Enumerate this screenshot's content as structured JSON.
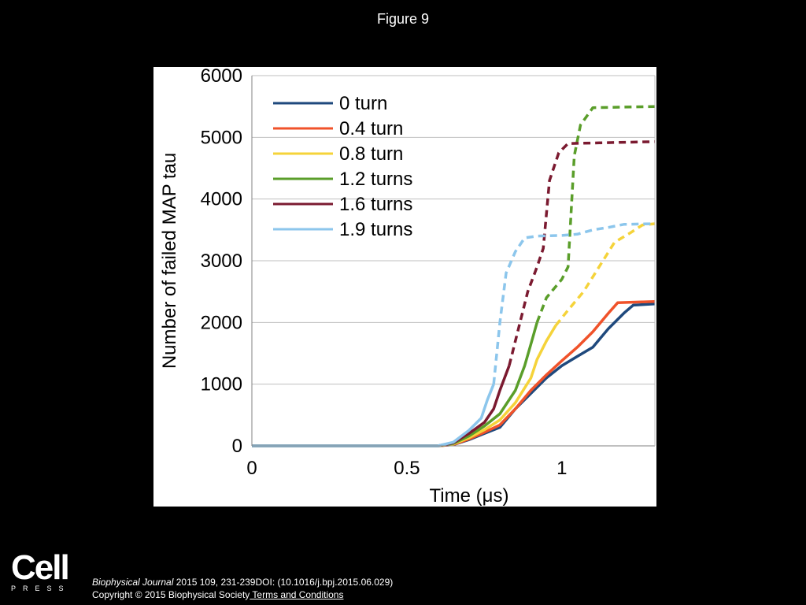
{
  "figure_title": "Figure 9",
  "footer": {
    "journal": "Biophysical Journal",
    "citation": " 2015 109, 231-239DOI: (10.1016/j.bpj.2015.06.029)",
    "copyright": "Copyright © 2015 Biophysical Society",
    "terms_link": " Terms and Conditions",
    "logo_word": "Cell",
    "logo_sub": "PRESS"
  },
  "chart_data": {
    "type": "line",
    "title": "",
    "xlabel": "Time (μs)",
    "ylabel": "Number of failed MAP tau",
    "xlim": [
      0,
      1.3
    ],
    "ylim": [
      0,
      6000
    ],
    "x_ticks": [
      0,
      0.5,
      1
    ],
    "x_tick_labels": [
      "0",
      "0.5",
      "1"
    ],
    "y_ticks": [
      0,
      1000,
      2000,
      3000,
      4000,
      5000,
      6000
    ],
    "y_tick_labels": [
      "0",
      "1000",
      "2000",
      "3000",
      "4000",
      "5000",
      "6000"
    ],
    "grid": "horizontal",
    "legend_position": "top-left",
    "note": "Each series is drawn solid up to the point where it turns dashed; the dashed portion follows.",
    "series": [
      {
        "name": "0 turn",
        "color": "#1F497D",
        "solid": [
          [
            0,
            0
          ],
          [
            0.6,
            0
          ],
          [
            0.65,
            20
          ],
          [
            0.7,
            100
          ],
          [
            0.75,
            200
          ],
          [
            0.8,
            300
          ],
          [
            0.85,
            600
          ],
          [
            0.9,
            850
          ],
          [
            0.95,
            1100
          ],
          [
            1.0,
            1300
          ],
          [
            1.05,
            1450
          ],
          [
            1.1,
            1600
          ],
          [
            1.15,
            1900
          ],
          [
            1.2,
            2150
          ],
          [
            1.23,
            2280
          ],
          [
            1.3,
            2300
          ]
        ],
        "dashed": []
      },
      {
        "name": "0.4 turn",
        "color": "#F0522A",
        "solid": [
          [
            0,
            0
          ],
          [
            0.6,
            0
          ],
          [
            0.65,
            20
          ],
          [
            0.7,
            110
          ],
          [
            0.75,
            220
          ],
          [
            0.8,
            340
          ],
          [
            0.85,
            600
          ],
          [
            0.9,
            900
          ],
          [
            0.95,
            1150
          ],
          [
            1.0,
            1380
          ],
          [
            1.05,
            1600
          ],
          [
            1.1,
            1850
          ],
          [
            1.15,
            2150
          ],
          [
            1.18,
            2320
          ],
          [
            1.3,
            2340
          ]
        ],
        "dashed": []
      },
      {
        "name": "0.8 turn",
        "color": "#F5D33A",
        "solid": [
          [
            0,
            0
          ],
          [
            0.6,
            0
          ],
          [
            0.65,
            30
          ],
          [
            0.7,
            130
          ],
          [
            0.75,
            260
          ],
          [
            0.8,
            420
          ],
          [
            0.85,
            700
          ],
          [
            0.9,
            1100
          ],
          [
            0.92,
            1400
          ],
          [
            0.95,
            1700
          ],
          [
            0.98,
            1950
          ]
        ],
        "dashed": [
          [
            0.98,
            1950
          ],
          [
            1.02,
            2200
          ],
          [
            1.07,
            2500
          ],
          [
            1.12,
            2900
          ],
          [
            1.17,
            3300
          ],
          [
            1.22,
            3450
          ],
          [
            1.26,
            3580
          ],
          [
            1.3,
            3600
          ]
        ]
      },
      {
        "name": "1.2 turns",
        "color": "#5A9E2A",
        "solid": [
          [
            0,
            0
          ],
          [
            0.6,
            0
          ],
          [
            0.65,
            40
          ],
          [
            0.7,
            160
          ],
          [
            0.75,
            320
          ],
          [
            0.8,
            520
          ],
          [
            0.85,
            900
          ],
          [
            0.88,
            1300
          ],
          [
            0.9,
            1650
          ],
          [
            0.92,
            2000
          ]
        ],
        "dashed": [
          [
            0.92,
            2000
          ],
          [
            0.95,
            2400
          ],
          [
            1.0,
            2700
          ],
          [
            1.02,
            2900
          ],
          [
            1.04,
            4700
          ],
          [
            1.06,
            5200
          ],
          [
            1.1,
            5480
          ],
          [
            1.3,
            5500
          ]
        ]
      },
      {
        "name": "1.6 turns",
        "color": "#7B1A30",
        "solid": [
          [
            0,
            0
          ],
          [
            0.6,
            0
          ],
          [
            0.65,
            50
          ],
          [
            0.7,
            200
          ],
          [
            0.75,
            380
          ],
          [
            0.78,
            600
          ],
          [
            0.8,
            900
          ],
          [
            0.83,
            1300
          ]
        ],
        "dashed": [
          [
            0.83,
            1300
          ],
          [
            0.86,
            1900
          ],
          [
            0.89,
            2500
          ],
          [
            0.92,
            2900
          ],
          [
            0.94,
            3200
          ],
          [
            0.96,
            4300
          ],
          [
            0.99,
            4750
          ],
          [
            1.02,
            4900
          ],
          [
            1.3,
            4930
          ]
        ]
      },
      {
        "name": "1.9 turns",
        "color": "#8CC6EC",
        "solid": [
          [
            0,
            0
          ],
          [
            0.6,
            0
          ],
          [
            0.65,
            60
          ],
          [
            0.7,
            250
          ],
          [
            0.74,
            450
          ],
          [
            0.76,
            750
          ],
          [
            0.78,
            1000
          ]
        ],
        "dashed": [
          [
            0.78,
            1000
          ],
          [
            0.8,
            2000
          ],
          [
            0.82,
            2800
          ],
          [
            0.85,
            3150
          ],
          [
            0.88,
            3370
          ],
          [
            0.92,
            3400
          ],
          [
            1.0,
            3410
          ],
          [
            1.05,
            3430
          ],
          [
            1.1,
            3500
          ],
          [
            1.15,
            3540
          ],
          [
            1.2,
            3590
          ],
          [
            1.3,
            3600
          ]
        ]
      }
    ]
  }
}
